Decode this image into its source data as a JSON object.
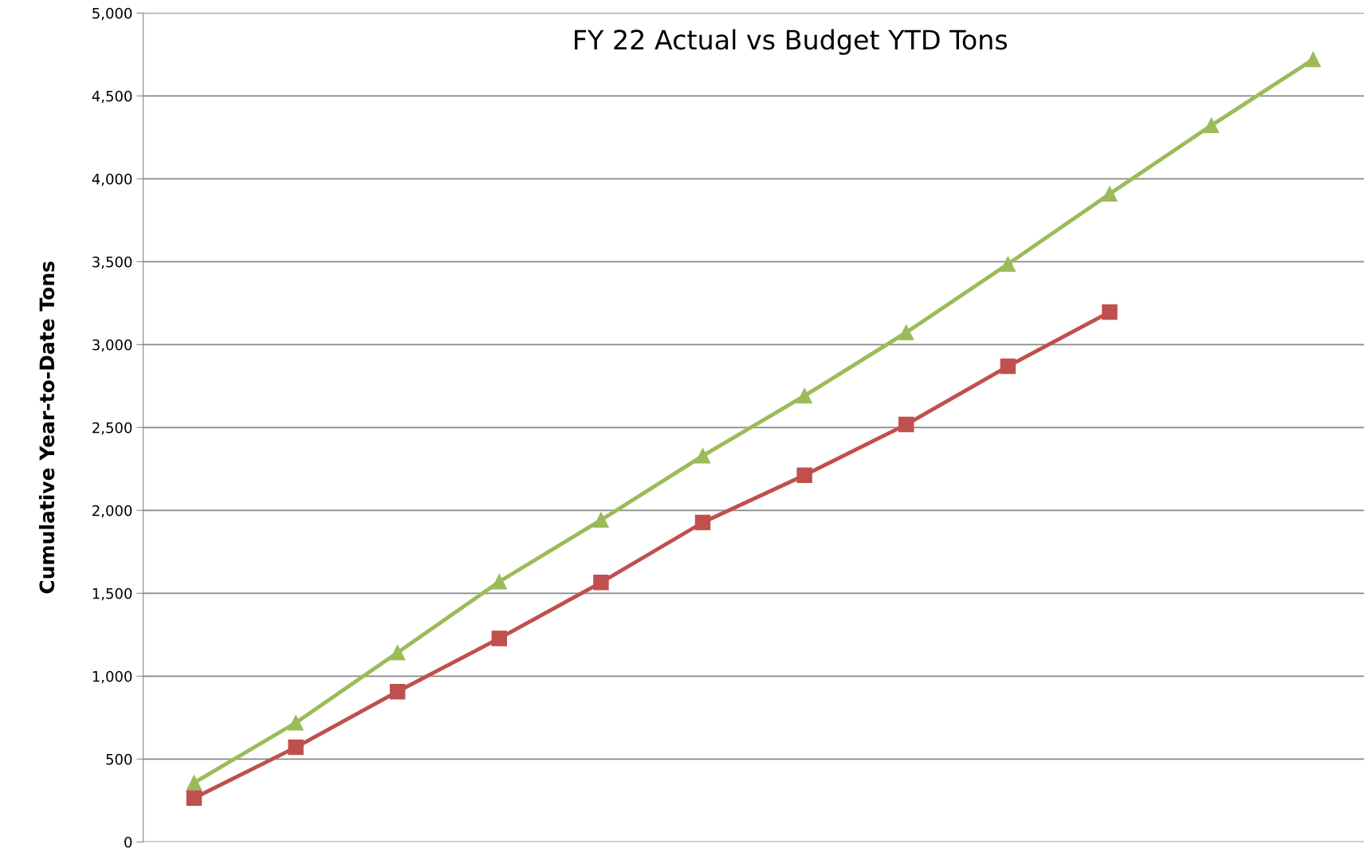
{
  "chart_data": {
    "type": "line",
    "title": "FY 22 Actual vs Budget YTD Tons",
    "ylabel": "Cumulative Year-to-Date Tons",
    "categories": [
      null,
      null,
      null,
      null,
      null,
      null,
      null,
      null,
      null,
      null,
      null,
      null
    ],
    "series": [
      {
        "color": "#9bbb59",
        "marker": "triangle",
        "values": [
          357,
          719,
          1142,
          1570,
          1942,
          2329,
          2691,
          3073,
          3486,
          3909,
          4322,
          4720
        ]
      },
      {
        "color": "#c0504d",
        "marker": "square",
        "values": [
          265,
          571,
          907,
          1228,
          1565,
          1927,
          2212,
          2518,
          2869,
          3196,
          null,
          null
        ]
      }
    ],
    "ylim": [
      0,
      5000
    ],
    "yticks": [
      {
        "value": 0,
        "label": "0"
      },
      {
        "value": 500,
        "label": "500"
      },
      {
        "value": 1000,
        "label": "1,000"
      },
      {
        "value": 1500,
        "label": "1,500"
      },
      {
        "value": 2000,
        "label": "2,000"
      },
      {
        "value": 2500,
        "label": "2,500"
      },
      {
        "value": 3000,
        "label": "3,000"
      },
      {
        "value": 3500,
        "label": "3,500"
      },
      {
        "value": 4000,
        "label": "4,000"
      },
      {
        "value": 4500,
        "label": "4,500"
      },
      {
        "value": 5000,
        "label": "5,000"
      }
    ],
    "grid": "y",
    "tick_labels": "y",
    "line_style": "solid"
  }
}
